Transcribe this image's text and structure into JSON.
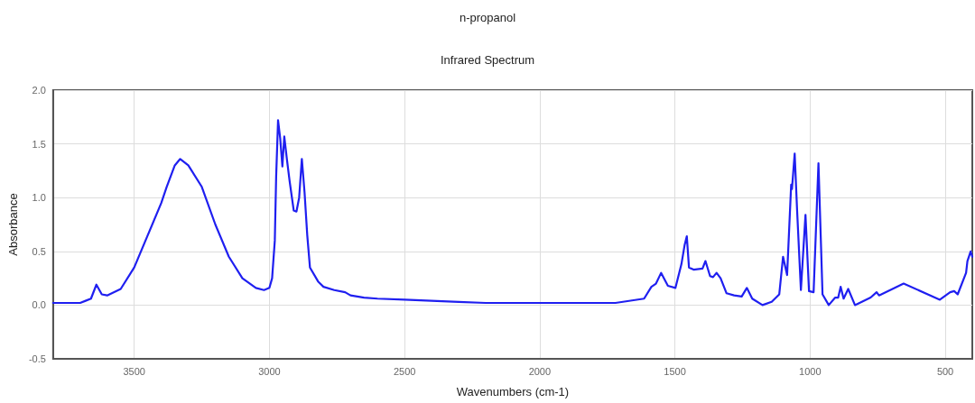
{
  "chart_data": {
    "type": "line",
    "title": "n-propanol",
    "subtitle": "Infrared Spectrum",
    "xlabel": "Wavenumbers (cm-1)",
    "ylabel": "Absorbance",
    "xlim": [
      3800,
      400
    ],
    "xticks": [
      3500,
      3000,
      2500,
      2000,
      1500,
      1000,
      500
    ],
    "ylim": [
      -0.5,
      2.0
    ],
    "yticks": [
      {
        "value": -0.5,
        "label": "-0.5"
      },
      {
        "value": 0,
        "label": "0.0"
      },
      {
        "value": 0.5,
        "label": "0.5"
      },
      {
        "value": 1,
        "label": "1.0"
      },
      {
        "value": 1.5,
        "label": "1.5"
      },
      {
        "value": 2,
        "label": "2.0"
      }
    ],
    "grid": true,
    "marker": "none",
    "line_style": "solid",
    "series": [
      {
        "color": "#1f1ff0",
        "x": [
          3800,
          3700,
          3680,
          3660,
          3640,
          3620,
          3600,
          3550,
          3500,
          3450,
          3400,
          3380,
          3350,
          3330,
          3300,
          3250,
          3200,
          3150,
          3100,
          3050,
          3020,
          3000,
          2990,
          2980,
          2975,
          2968,
          2960,
          2952,
          2945,
          2935,
          2925,
          2910,
          2900,
          2890,
          2880,
          2870,
          2860,
          2850,
          2820,
          2800,
          2760,
          2720,
          2700,
          2650,
          2600,
          2500,
          2400,
          2300,
          2200,
          2100,
          2000,
          1900,
          1800,
          1720,
          1614,
          1587,
          1570,
          1551,
          1526,
          1498,
          1476,
          1464,
          1456,
          1448,
          1431,
          1398,
          1387,
          1370,
          1359,
          1346,
          1331,
          1309,
          1281,
          1253,
          1234,
          1214,
          1176,
          1142,
          1114,
          1100,
          1085,
          1070,
          1067,
          1057,
          1048,
          1034,
          1017,
          1004,
          987,
          969,
          954,
          931,
          907,
          896,
          887,
          876,
          859,
          834,
          776,
          754,
          745,
          654,
          520,
          482,
          467,
          454,
          423,
          418,
          406,
          400
        ],
        "values": [
          0.02,
          0.02,
          0.04,
          0.06,
          0.19,
          0.1,
          0.09,
          0.15,
          0.35,
          0.65,
          0.95,
          1.1,
          1.3,
          1.36,
          1.3,
          1.1,
          0.75,
          0.45,
          0.25,
          0.16,
          0.14,
          0.16,
          0.25,
          0.6,
          1.2,
          1.72,
          1.55,
          1.29,
          1.57,
          1.35,
          1.15,
          0.88,
          0.87,
          1.0,
          1.36,
          1.05,
          0.65,
          0.35,
          0.22,
          0.17,
          0.14,
          0.12,
          0.09,
          0.07,
          0.06,
          0.05,
          0.04,
          0.03,
          0.02,
          0.02,
          0.02,
          0.02,
          0.02,
          0.02,
          0.06,
          0.17,
          0.2,
          0.3,
          0.18,
          0.16,
          0.38,
          0.56,
          0.64,
          0.35,
          0.33,
          0.34,
          0.41,
          0.27,
          0.26,
          0.3,
          0.25,
          0.11,
          0.09,
          0.08,
          0.16,
          0.06,
          0.0,
          0.03,
          0.1,
          0.45,
          0.28,
          1.12,
          1.08,
          1.41,
          0.88,
          0.14,
          0.84,
          0.13,
          0.12,
          1.32,
          0.1,
          0.0,
          0.07,
          0.07,
          0.17,
          0.06,
          0.15,
          0.0,
          0.07,
          0.12,
          0.09,
          0.2,
          0.05,
          0.12,
          0.13,
          0.1,
          0.3,
          0.41,
          0.5,
          0.45
        ]
      }
    ]
  }
}
